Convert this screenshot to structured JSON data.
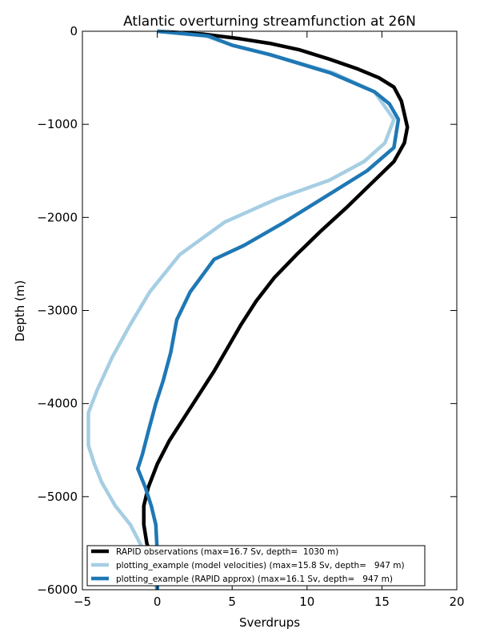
{
  "chart_data": {
    "type": "line",
    "title": "Atlantic overturning streamfunction at 26N",
    "xlabel": "Sverdrups",
    "ylabel": "Depth (m)",
    "xlim": [
      -5,
      20
    ],
    "ylim": [
      -6000,
      0
    ],
    "xticks": [
      -5,
      0,
      5,
      10,
      15,
      20
    ],
    "yticks": [
      0,
      -1000,
      -2000,
      -3000,
      -4000,
      -5000,
      -6000
    ],
    "xtick_labels": [
      "−5",
      "0",
      "5",
      "10",
      "15",
      "20"
    ],
    "ytick_labels": [
      "0",
      "−1000",
      "−2000",
      "−3000",
      "−4000",
      "−5000",
      "−6000"
    ],
    "grid": false,
    "legend_position": "lower-center",
    "series": [
      {
        "name": "RAPID observations (max=16.7 Sv, depth=  1030 m)",
        "color": "#000000",
        "points": [
          [
            0.0,
            0
          ],
          [
            3.0,
            -30
          ],
          [
            5.5,
            -80
          ],
          [
            7.5,
            -130
          ],
          [
            9.5,
            -200
          ],
          [
            11.5,
            -300
          ],
          [
            13.3,
            -400
          ],
          [
            14.8,
            -500
          ],
          [
            15.8,
            -600
          ],
          [
            16.3,
            -750
          ],
          [
            16.7,
            -1030
          ],
          [
            16.5,
            -1200
          ],
          [
            15.8,
            -1400
          ],
          [
            14.2,
            -1650
          ],
          [
            12.6,
            -1900
          ],
          [
            10.9,
            -2150
          ],
          [
            9.3,
            -2400
          ],
          [
            7.8,
            -2650
          ],
          [
            6.6,
            -2900
          ],
          [
            5.6,
            -3150
          ],
          [
            4.7,
            -3400
          ],
          [
            3.8,
            -3650
          ],
          [
            2.8,
            -3900
          ],
          [
            1.8,
            -4150
          ],
          [
            0.8,
            -4400
          ],
          [
            0.0,
            -4650
          ],
          [
            -0.6,
            -4900
          ],
          [
            -0.9,
            -5100
          ],
          [
            -0.9,
            -5300
          ],
          [
            -0.7,
            -5500
          ],
          [
            -0.3,
            -5700
          ],
          [
            0.0,
            -5900
          ],
          [
            0.0,
            -6000
          ]
        ]
      },
      {
        "name": "plotting_example (model velocities) (max=15.8 Sv, depth=   947 m)",
        "color": "#a6cee3",
        "points": [
          [
            0.0,
            0
          ],
          [
            3.2,
            -50
          ],
          [
            5.0,
            -150
          ],
          [
            7.5,
            -250
          ],
          [
            11.8,
            -450
          ],
          [
            14.5,
            -650
          ],
          [
            15.8,
            -947
          ],
          [
            15.2,
            -1200
          ],
          [
            13.8,
            -1400
          ],
          [
            11.5,
            -1600
          ],
          [
            8.0,
            -1800
          ],
          [
            4.5,
            -2050
          ],
          [
            1.5,
            -2400
          ],
          [
            -0.5,
            -2800
          ],
          [
            -1.8,
            -3150
          ],
          [
            -3.0,
            -3500
          ],
          [
            -4.0,
            -3850
          ],
          [
            -4.6,
            -4100
          ],
          [
            -4.6,
            -4450
          ],
          [
            -4.2,
            -4650
          ],
          [
            -3.7,
            -4850
          ],
          [
            -2.8,
            -5100
          ],
          [
            -1.8,
            -5300
          ],
          [
            -1.0,
            -5550
          ],
          [
            -0.5,
            -5800
          ],
          [
            0.0,
            -6000
          ]
        ]
      },
      {
        "name": "plotting_example (RAPID approx) (max=16.1 Sv, depth=   947 m)",
        "color": "#1f78b4",
        "points": [
          [
            0.0,
            0
          ],
          [
            3.4,
            -50
          ],
          [
            5.0,
            -150
          ],
          [
            7.5,
            -250
          ],
          [
            11.6,
            -450
          ],
          [
            14.5,
            -650
          ],
          [
            15.5,
            -780
          ],
          [
            16.1,
            -947
          ],
          [
            15.8,
            -1250
          ],
          [
            14.0,
            -1500
          ],
          [
            11.5,
            -1750
          ],
          [
            8.5,
            -2050
          ],
          [
            5.8,
            -2300
          ],
          [
            3.8,
            -2450
          ],
          [
            2.2,
            -2800
          ],
          [
            1.3,
            -3100
          ],
          [
            0.9,
            -3450
          ],
          [
            0.4,
            -3750
          ],
          [
            -0.1,
            -4000
          ],
          [
            -0.6,
            -4300
          ],
          [
            -1.0,
            -4550
          ],
          [
            -1.3,
            -4700
          ],
          [
            -0.8,
            -4900
          ],
          [
            -0.4,
            -5100
          ],
          [
            -0.1,
            -5300
          ],
          [
            0.0,
            -5600
          ],
          [
            0.0,
            -6000
          ]
        ]
      }
    ]
  }
}
